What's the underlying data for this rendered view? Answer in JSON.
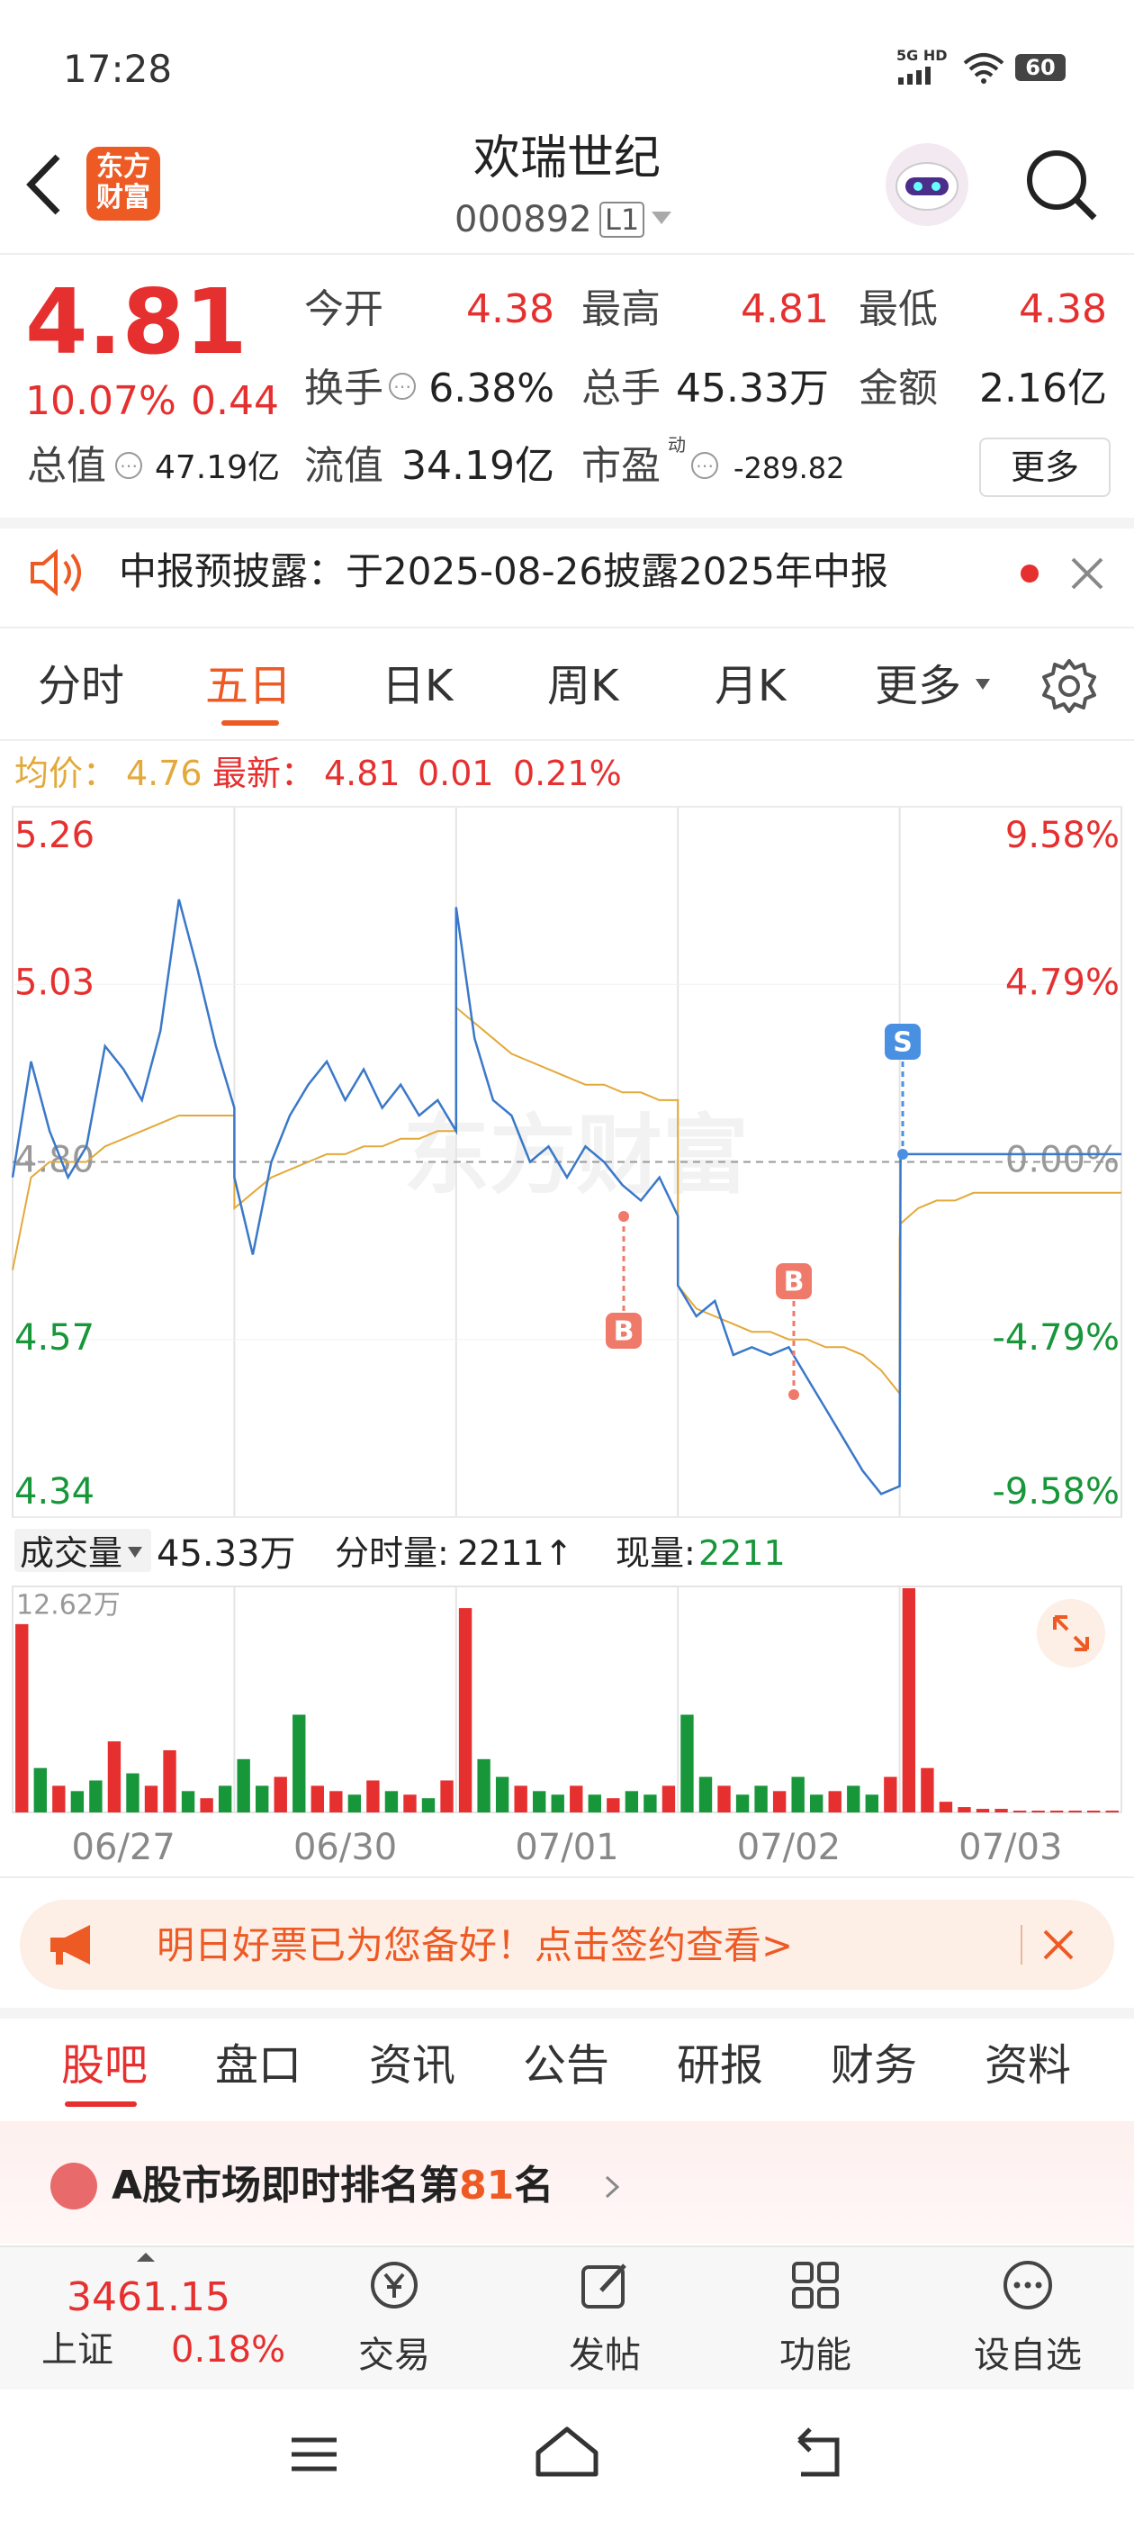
{
  "status": {
    "time": "17:28",
    "network": "5G HD",
    "battery": "60"
  },
  "header": {
    "logo_lines": [
      "东方",
      "财富"
    ],
    "title": "欢瑞世纪",
    "code": "000892",
    "level": "L1"
  },
  "quote": {
    "price": "4.81",
    "change_pct": "10.07%",
    "change": "0.44",
    "stats": [
      {
        "label": "今开",
        "value": "4.38"
      },
      {
        "label": "最高",
        "value": "4.81"
      },
      {
        "label": "最低",
        "value": "4.38"
      },
      {
        "label": "换手",
        "value": "6.38%"
      },
      {
        "label": "总手",
        "value": "45.33万"
      },
      {
        "label": "金额",
        "value": "2.16亿"
      },
      {
        "label": "总值",
        "value": "47.19亿"
      },
      {
        "label": "流值",
        "value": "34.19亿"
      },
      {
        "label": "市盈",
        "sup": "动",
        "value": "-289.82"
      }
    ],
    "more": "更多"
  },
  "notice": "中报预披露：于2025-08-26披露2025年中报",
  "tabs": [
    "分时",
    "五日",
    "日K",
    "周K",
    "月K",
    "更多"
  ],
  "info": {
    "avg_label": "均价：",
    "avg": "4.76",
    "latest_label": "最新：",
    "latest": "4.81",
    "change": "0.01",
    "pct": "0.21%"
  },
  "watermark": "东方财富",
  "markers": [
    {
      "label": "S"
    },
    {
      "label": "B"
    },
    {
      "label": "B"
    }
  ],
  "volume_info": {
    "label": "成交量",
    "total": "45.33万",
    "tick_label": "分时量:",
    "tick": "2211↑",
    "now_label": "现量:",
    "now": "2211"
  },
  "chart_data": [
    {
      "type": "line",
      "x": [
        0,
        20,
        40,
        60,
        80,
        100,
        120,
        140,
        160,
        180,
        200,
        220,
        240,
        240,
        260,
        280,
        300,
        320,
        340,
        360,
        380,
        400,
        420,
        440,
        460,
        480,
        480,
        500,
        520,
        540,
        560,
        580,
        600,
        620,
        640,
        660,
        680,
        700,
        720,
        720,
        740,
        760,
        780,
        800,
        820,
        840,
        860,
        880,
        900,
        920,
        940,
        960,
        960,
        961,
        980,
        1000,
        1020,
        1040,
        1060,
        1080,
        1100,
        1120,
        1140,
        1160,
        1200
      ],
      "xlim": [
        0,
        1200
      ],
      "xticks": [
        {
          "value": 120,
          "label": "06/27"
        },
        {
          "value": 360,
          "label": "06/30"
        },
        {
          "value": 600,
          "label": "07/01"
        },
        {
          "value": 840,
          "label": "07/02"
        },
        {
          "value": 1080,
          "label": "07/03"
        }
      ],
      "ylim": [
        4.34,
        5.26
      ],
      "yticks": [
        4.34,
        4.57,
        {
          "value": 4.8,
          "label": "4.80"
        },
        5.03,
        5.26
      ],
      "y2lim": [
        -9.58,
        9.58
      ],
      "y2ticks": [
        {
          "value": -9.58,
          "label": "-9.58%"
        },
        {
          "value": -4.79,
          "label": "-4.79%"
        },
        {
          "value": 0,
          "label": "0.00%"
        },
        {
          "value": 4.79,
          "label": "4.79%"
        },
        {
          "value": 9.58,
          "label": "9.58%"
        }
      ],
      "series": [
        {
          "color": "#3a78c9",
          "values": [
            4.78,
            4.93,
            4.84,
            4.78,
            4.82,
            4.95,
            4.92,
            4.88,
            4.97,
            5.14,
            5.05,
            4.95,
            4.87,
            4.78,
            4.68,
            4.8,
            4.86,
            4.9,
            4.93,
            4.88,
            4.92,
            4.87,
            4.9,
            4.86,
            4.88,
            4.84,
            5.13,
            4.96,
            4.88,
            4.86,
            4.8,
            4.82,
            4.78,
            4.82,
            4.8,
            4.77,
            4.75,
            4.78,
            4.73,
            4.64,
            4.6,
            4.62,
            4.55,
            4.56,
            4.55,
            4.56,
            4.52,
            4.48,
            4.44,
            4.4,
            4.37,
            4.38,
            4.38,
            4.81,
            4.81,
            4.81,
            4.81,
            4.81,
            4.81,
            4.81,
            4.81,
            4.81,
            4.81,
            4.81,
            4.81
          ]
        },
        {
          "color": "#e3a93a",
          "values": [
            4.66,
            4.78,
            4.8,
            4.8,
            4.8,
            4.82,
            4.83,
            4.84,
            4.85,
            4.86,
            4.86,
            4.86,
            4.86,
            4.74,
            4.76,
            4.78,
            4.79,
            4.8,
            4.81,
            4.81,
            4.82,
            4.82,
            4.83,
            4.83,
            4.84,
            4.84,
            5.0,
            4.98,
            4.96,
            4.94,
            4.93,
            4.92,
            4.91,
            4.9,
            4.9,
            4.89,
            4.89,
            4.88,
            4.88,
            4.64,
            4.61,
            4.6,
            4.59,
            4.58,
            4.58,
            4.57,
            4.57,
            4.56,
            4.56,
            4.55,
            4.53,
            4.5,
            4.7,
            4.72,
            4.74,
            4.75,
            4.75,
            4.76,
            4.76,
            4.76,
            4.76,
            4.76,
            4.76,
            4.76,
            4.76
          ]
        }
      ]
    },
    {
      "type": "bar",
      "x": [
        10,
        30,
        50,
        70,
        90,
        110,
        130,
        150,
        170,
        190,
        210,
        230,
        250,
        270,
        290,
        310,
        330,
        350,
        370,
        390,
        410,
        430,
        450,
        470,
        490,
        510,
        530,
        550,
        570,
        590,
        610,
        630,
        650,
        670,
        690,
        710,
        730,
        750,
        770,
        790,
        810,
        830,
        850,
        870,
        890,
        910,
        930,
        950,
        970,
        990,
        1010,
        1030,
        1050,
        1070,
        1090,
        1110,
        1130,
        1150,
        1170,
        1190
      ],
      "xlim": [
        0,
        1200
      ],
      "ylim": [
        0,
        12.62
      ],
      "yticks": [
        {
          "value": 12.62,
          "label": "12.62万"
        }
      ],
      "values": [
        10.6,
        2.5,
        1.5,
        1.2,
        1.8,
        4.0,
        2.2,
        1.5,
        3.5,
        1.2,
        0.8,
        1.5,
        3.0,
        1.5,
        2.0,
        5.5,
        1.5,
        1.2,
        1.0,
        1.8,
        1.2,
        1.0,
        0.8,
        1.8,
        11.5,
        3.0,
        2.0,
        1.5,
        1.2,
        1.0,
        1.5,
        1.0,
        0.8,
        1.2,
        1.0,
        1.5,
        5.5,
        2.0,
        1.5,
        1.0,
        1.5,
        1.2,
        2.0,
        1.0,
        1.2,
        1.5,
        1.0,
        2.0,
        12.62,
        2.5,
        0.6,
        0.3,
        0.2,
        0.2,
        0.1,
        0.1,
        0.1,
        0.1,
        0.1,
        0.1
      ],
      "colors": [
        "#e5302f",
        "#17963a",
        "#e5302f",
        "#17963a",
        "#17963a",
        "#e5302f",
        "#17963a",
        "#e5302f",
        "#e5302f",
        "#17963a",
        "#e5302f",
        "#17963a",
        "#17963a",
        "#17963a",
        "#e5302f",
        "#17963a",
        "#e5302f",
        "#e5302f",
        "#17963a",
        "#e5302f",
        "#17963a",
        "#e5302f",
        "#17963a",
        "#e5302f",
        "#e5302f",
        "#17963a",
        "#17963a",
        "#e5302f",
        "#17963a",
        "#17963a",
        "#e5302f",
        "#17963a",
        "#e5302f",
        "#17963a",
        "#17963a",
        "#e5302f",
        "#17963a",
        "#17963a",
        "#e5302f",
        "#17963a",
        "#17963a",
        "#e5302f",
        "#17963a",
        "#17963a",
        "#e5302f",
        "#17963a",
        "#17963a",
        "#e5302f",
        "#e5302f",
        "#e5302f",
        "#e5302f",
        "#e5302f",
        "#e5302f",
        "#e5302f",
        "#e5302f",
        "#e5302f",
        "#e5302f",
        "#e5302f",
        "#e5302f",
        "#e5302f"
      ]
    }
  ],
  "banner": "明日好票已为您备好！点击签约查看>",
  "subtabs": [
    "股吧",
    "盘口",
    "资讯",
    "公告",
    "研报",
    "财务",
    "资料"
  ],
  "rank": {
    "prefix": "A股市场即时排名第",
    "rank": "81",
    "suffix": "名"
  },
  "index": {
    "value": "3461.15",
    "name": "上证",
    "pct": "0.18%"
  },
  "actions": [
    "交易",
    "发帖",
    "功能",
    "设自选"
  ]
}
